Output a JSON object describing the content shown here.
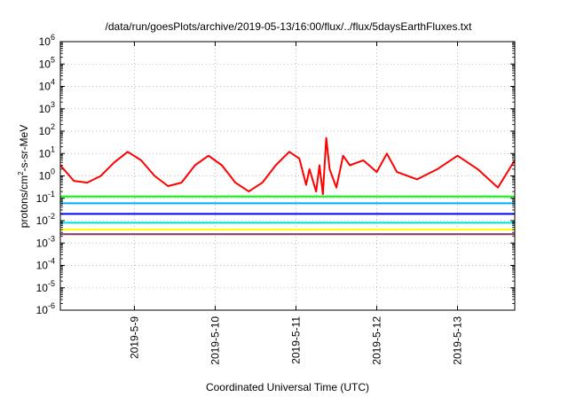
{
  "chart_data": {
    "type": "line",
    "title": "/data/run/goesPlots/archive/2019-05-13/16:00/flux/../flux/5daysEarthFluxes.txt",
    "xlabel": "Coordinated Universal Time (UTC)",
    "ylabel_parts": [
      "protons/cm",
      "2",
      "-s-sr-MeV"
    ],
    "y_scale": "log",
    "ylim": [
      1e-06,
      1000000.0
    ],
    "y_ticks": [
      {
        "base": "10",
        "exp": "6",
        "value": 1000000.0
      },
      {
        "base": "10",
        "exp": "5",
        "value": 100000.0
      },
      {
        "base": "10",
        "exp": "4",
        "value": 10000.0
      },
      {
        "base": "10",
        "exp": "3",
        "value": 1000.0
      },
      {
        "base": "10",
        "exp": "2",
        "value": 100.0
      },
      {
        "base": "10",
        "exp": "1",
        "value": 10.0
      },
      {
        "base": "10",
        "exp": "0",
        "value": 1
      },
      {
        "base": "10",
        "exp": "-1",
        "value": 0.1
      },
      {
        "base": "10",
        "exp": "-2",
        "value": 0.01
      },
      {
        "base": "10",
        "exp": "-3",
        "value": 0.001
      },
      {
        "base": "10",
        "exp": "-4",
        "value": 0.0001
      },
      {
        "base": "10",
        "exp": "-5",
        "value": 1e-05
      },
      {
        "base": "10",
        "exp": "-6",
        "value": 1e-06
      }
    ],
    "xlim": [
      "2019-5-8 02:00",
      "2019-5-13 17:00"
    ],
    "x_ticks": [
      "2019-5-9",
      "2019-5-10",
      "2019-5-11",
      "2019-5-12",
      "2019-5-13"
    ],
    "grid": true,
    "series": [
      {
        "color": "#ff0000",
        "x": [
          "2019-5-8 02:00",
          "2019-5-8 06:00",
          "2019-5-8 10:00",
          "2019-5-8 14:00",
          "2019-5-8 18:00",
          "2019-5-8 22:00",
          "2019-5-9 02:00",
          "2019-5-9 06:00",
          "2019-5-9 10:00",
          "2019-5-9 14:00",
          "2019-5-9 18:00",
          "2019-5-9 22:00",
          "2019-5-10 02:00",
          "2019-5-10 06:00",
          "2019-5-10 10:00",
          "2019-5-10 14:00",
          "2019-5-10 18:00",
          "2019-5-10 22:00",
          "2019-5-11 01:00",
          "2019-5-11 03:00",
          "2019-5-11 04:00",
          "2019-5-11 06:00",
          "2019-5-11 07:00",
          "2019-5-11 08:00",
          "2019-5-11 09:00",
          "2019-5-11 10:00",
          "2019-5-11 12:00",
          "2019-5-11 14:00",
          "2019-5-11 16:00",
          "2019-5-11 20:00",
          "2019-5-12 00:00",
          "2019-5-12 03:00",
          "2019-5-12 06:00",
          "2019-5-12 12:00",
          "2019-5-12 18:00",
          "2019-5-13 00:00",
          "2019-5-13 06:00",
          "2019-5-13 12:00",
          "2019-5-13 17:00"
        ],
        "values": [
          3,
          0.6,
          0.5,
          1,
          4,
          12,
          5,
          1,
          0.35,
          0.5,
          3,
          8,
          3,
          0.5,
          0.2,
          0.5,
          3,
          12,
          6,
          0.4,
          2,
          0.2,
          3,
          0.15,
          50,
          2,
          0.3,
          8,
          3,
          5,
          1.5,
          10,
          1.5,
          0.7,
          2,
          8,
          2,
          0.3,
          5
        ]
      },
      {
        "color": "#00ff00",
        "x": [
          "2019-5-8 02:00",
          "2019-5-13 17:00"
        ],
        "values": [
          0.12,
          0.12
        ]
      },
      {
        "color": "#00aaff",
        "x": [
          "2019-5-8 02:00",
          "2019-5-13 17:00"
        ],
        "values": [
          0.06,
          0.06
        ]
      },
      {
        "color": "#0000ff",
        "x": [
          "2019-5-8 02:00",
          "2019-5-13 17:00"
        ],
        "values": [
          0.02,
          0.02
        ]
      },
      {
        "color": "#00dddd",
        "x": [
          "2019-5-8 02:00",
          "2019-5-13 17:00"
        ],
        "values": [
          0.008,
          0.008
        ]
      },
      {
        "color": "#ffff00",
        "x": [
          "2019-5-8 02:00",
          "2019-5-13 17:00"
        ],
        "values": [
          0.004,
          0.004
        ]
      },
      {
        "color": "#883366",
        "x": [
          "2019-5-8 02:00",
          "2019-5-13 17:00"
        ],
        "values": [
          0.0025,
          0.0025
        ]
      }
    ]
  }
}
